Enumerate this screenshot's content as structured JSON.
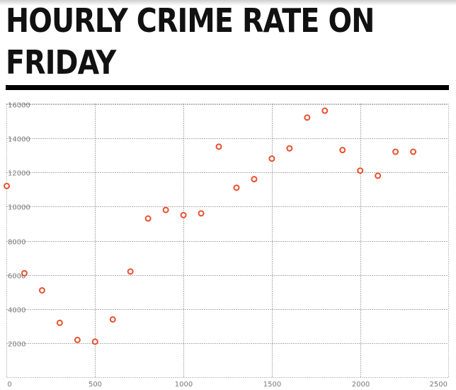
{
  "page": {
    "title": "HOURLY CRIME RATE ON FRIDAY"
  },
  "colors": {
    "point": "#e8502f",
    "rule": "#000000",
    "grid": "#666666",
    "tick_text": "#777777"
  },
  "chart_data": {
    "type": "scatter",
    "title": "HOURLY CRIME RATE ON FRIDAY",
    "xlabel": "",
    "ylabel": "",
    "xlim": [
      0,
      2500
    ],
    "ylim": [
      0,
      16000
    ],
    "x_ticks": [
      0,
      500,
      1000,
      1500,
      2000,
      2500
    ],
    "y_ticks": [
      2000,
      4000,
      6000,
      8000,
      10000,
      12000,
      14000,
      16000
    ],
    "grid": true,
    "legend": "none",
    "series": [
      {
        "x": [
          0,
          100,
          200,
          300,
          400,
          500,
          600,
          700,
          800,
          900,
          1000,
          1100,
          1200,
          1300,
          1400,
          1500,
          1600,
          1700,
          1800,
          1900,
          2000,
          2100,
          2200,
          2300
        ],
        "y": [
          11200,
          6100,
          5100,
          3200,
          2200,
          2100,
          3400,
          6200,
          9300,
          9800,
          9500,
          9600,
          13500,
          11100,
          11600,
          12800,
          13400,
          15200,
          15600,
          13300,
          12100,
          11800,
          13200,
          13200
        ]
      }
    ]
  }
}
